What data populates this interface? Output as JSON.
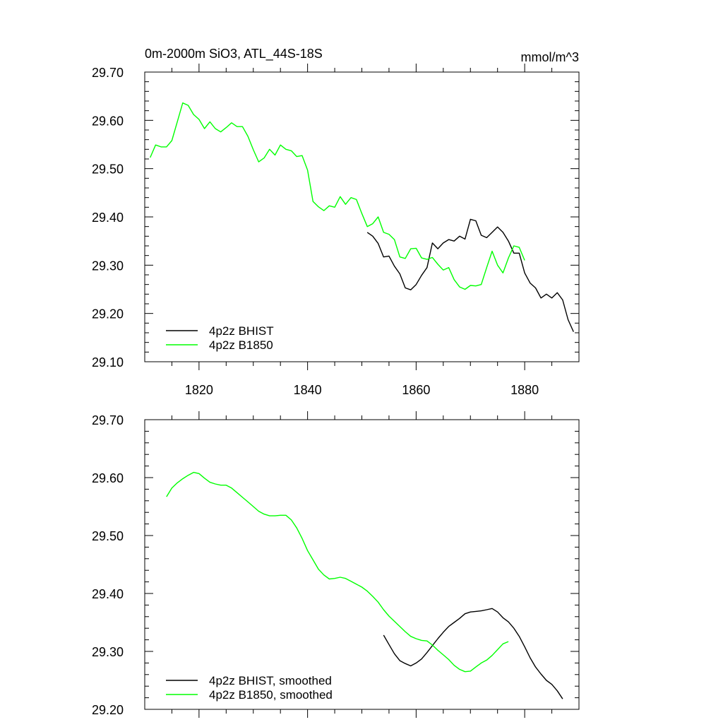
{
  "chart_data": [
    {
      "type": "line",
      "title": "0m-2000m SiO3, ATL_44S-18S",
      "units": "mmol/m^3",
      "xlim": [
        1810,
        1890
      ],
      "ylim": [
        29.1,
        29.7
      ],
      "x_ticks": [
        1820,
        1840,
        1860,
        1880
      ],
      "x_tick_labels": [
        "1820",
        "1840",
        "1860",
        "1880"
      ],
      "y_ticks": [
        29.1,
        29.2,
        29.3,
        29.4,
        29.5,
        29.6,
        29.7
      ],
      "y_tick_labels": [
        "29.10",
        "29.20",
        "29.30",
        "29.40",
        "29.50",
        "29.60",
        "29.70"
      ],
      "legend_position": "bottom-left",
      "grid": false,
      "series": [
        {
          "name": "4p2z BHIST",
          "color": "#000000",
          "x": [
            1851,
            1852,
            1853,
            1854,
            1855,
            1856,
            1857,
            1858,
            1859,
            1860,
            1861,
            1862,
            1863,
            1864,
            1865,
            1866,
            1867,
            1868,
            1869,
            1870,
            1871,
            1872,
            1873,
            1874,
            1875,
            1876,
            1877,
            1878,
            1879,
            1880,
            1881,
            1882,
            1883,
            1884,
            1885,
            1886,
            1887,
            1888,
            1889
          ],
          "y": [
            29.368,
            29.36,
            29.345,
            29.317,
            29.319,
            29.298,
            29.282,
            29.253,
            29.249,
            29.26,
            29.279,
            29.295,
            29.346,
            29.334,
            29.346,
            29.353,
            29.35,
            29.36,
            29.354,
            29.395,
            29.392,
            29.362,
            29.357,
            29.368,
            29.379,
            29.368,
            29.35,
            29.325,
            29.325,
            29.284,
            29.263,
            29.253,
            29.232,
            29.24,
            29.232,
            29.243,
            29.228,
            29.187,
            29.162
          ]
        },
        {
          "name": "4p2z B1850",
          "color": "#00ff00",
          "x": [
            1811,
            1812,
            1813,
            1814,
            1815,
            1816,
            1817,
            1818,
            1819,
            1820,
            1821,
            1822,
            1823,
            1824,
            1825,
            1826,
            1827,
            1828,
            1829,
            1830,
            1831,
            1832,
            1833,
            1834,
            1835,
            1836,
            1837,
            1838,
            1839,
            1840,
            1841,
            1842,
            1843,
            1844,
            1845,
            1846,
            1847,
            1848,
            1849,
            1850,
            1851,
            1852,
            1853,
            1854,
            1855,
            1856,
            1857,
            1858,
            1859,
            1860,
            1861,
            1862,
            1863,
            1864,
            1865,
            1866,
            1867,
            1868,
            1869,
            1870,
            1871,
            1872,
            1873,
            1874,
            1875,
            1876,
            1877,
            1878,
            1879,
            1880
          ],
          "y": [
            29.523,
            29.549,
            29.545,
            29.545,
            29.558,
            29.597,
            29.636,
            29.631,
            29.612,
            29.602,
            29.583,
            29.597,
            29.583,
            29.576,
            29.585,
            29.595,
            29.587,
            29.587,
            29.567,
            29.539,
            29.514,
            29.522,
            29.54,
            29.528,
            29.549,
            29.54,
            29.537,
            29.525,
            29.527,
            29.497,
            29.432,
            29.421,
            29.413,
            29.423,
            29.42,
            29.442,
            29.426,
            29.44,
            29.436,
            29.407,
            29.38,
            29.386,
            29.4,
            29.368,
            29.364,
            29.353,
            29.317,
            29.314,
            29.334,
            29.335,
            29.315,
            29.312,
            29.316,
            29.302,
            29.29,
            29.295,
            29.27,
            29.255,
            29.25,
            29.258,
            29.257,
            29.26,
            29.295,
            29.329,
            29.3,
            29.284,
            29.315,
            29.34,
            29.337,
            29.31
          ]
        }
      ]
    },
    {
      "type": "line",
      "xlim": [
        1810,
        1890
      ],
      "ylim": [
        29.2,
        29.7
      ],
      "y_ticks": [
        29.2,
        29.3,
        29.4,
        29.5,
        29.6,
        29.7
      ],
      "y_tick_labels": [
        "29.20",
        "29.30",
        "29.40",
        "29.50",
        "29.60",
        "29.70"
      ],
      "legend_position": "bottom-left",
      "grid": false,
      "series": [
        {
          "name": "4p2z BHIST, smoothed",
          "color": "#000000",
          "x": [
            1854,
            1855,
            1856,
            1857,
            1858,
            1859,
            1860,
            1861,
            1862,
            1863,
            1864,
            1865,
            1866,
            1867,
            1868,
            1869,
            1870,
            1871,
            1872,
            1873,
            1874,
            1875,
            1876,
            1877,
            1878,
            1879,
            1880,
            1881,
            1882,
            1883,
            1884,
            1885,
            1886,
            1887
          ],
          "y": [
            29.328,
            29.312,
            29.296,
            29.284,
            29.279,
            29.275,
            29.28,
            29.287,
            29.298,
            29.31,
            29.322,
            29.333,
            29.343,
            29.35,
            29.357,
            29.365,
            29.368,
            29.369,
            29.37,
            29.372,
            29.374,
            29.368,
            29.358,
            29.351,
            29.34,
            29.326,
            29.308,
            29.289,
            29.273,
            29.261,
            29.25,
            29.243,
            29.232,
            29.218
          ]
        },
        {
          "name": "4p2z B1850, smoothed",
          "color": "#00ff00",
          "x": [
            1814,
            1815,
            1816,
            1817,
            1818,
            1819,
            1820,
            1821,
            1822,
            1823,
            1824,
            1825,
            1826,
            1827,
            1828,
            1829,
            1830,
            1831,
            1832,
            1833,
            1834,
            1835,
            1836,
            1837,
            1838,
            1839,
            1840,
            1841,
            1842,
            1843,
            1844,
            1845,
            1846,
            1847,
            1848,
            1849,
            1850,
            1851,
            1852,
            1853,
            1854,
            1855,
            1856,
            1857,
            1858,
            1859,
            1860,
            1861,
            1862,
            1863,
            1864,
            1865,
            1866,
            1867,
            1868,
            1869,
            1870,
            1871,
            1872,
            1873,
            1874,
            1875,
            1876,
            1877
          ],
          "y": [
            29.567,
            29.582,
            29.591,
            29.598,
            29.604,
            29.609,
            29.607,
            29.599,
            29.592,
            29.589,
            29.587,
            29.587,
            29.582,
            29.574,
            29.566,
            29.558,
            29.55,
            29.542,
            29.537,
            29.534,
            29.534,
            29.535,
            29.535,
            29.527,
            29.513,
            29.495,
            29.474,
            29.458,
            29.442,
            29.432,
            29.425,
            29.426,
            29.428,
            29.426,
            29.421,
            29.416,
            29.411,
            29.404,
            29.395,
            29.385,
            29.372,
            29.361,
            29.352,
            29.343,
            29.334,
            29.326,
            29.322,
            29.319,
            29.318,
            29.311,
            29.302,
            29.294,
            29.286,
            29.276,
            29.269,
            29.265,
            29.266,
            29.273,
            29.28,
            29.285,
            29.293,
            29.303,
            29.313,
            29.317
          ]
        }
      ]
    }
  ]
}
